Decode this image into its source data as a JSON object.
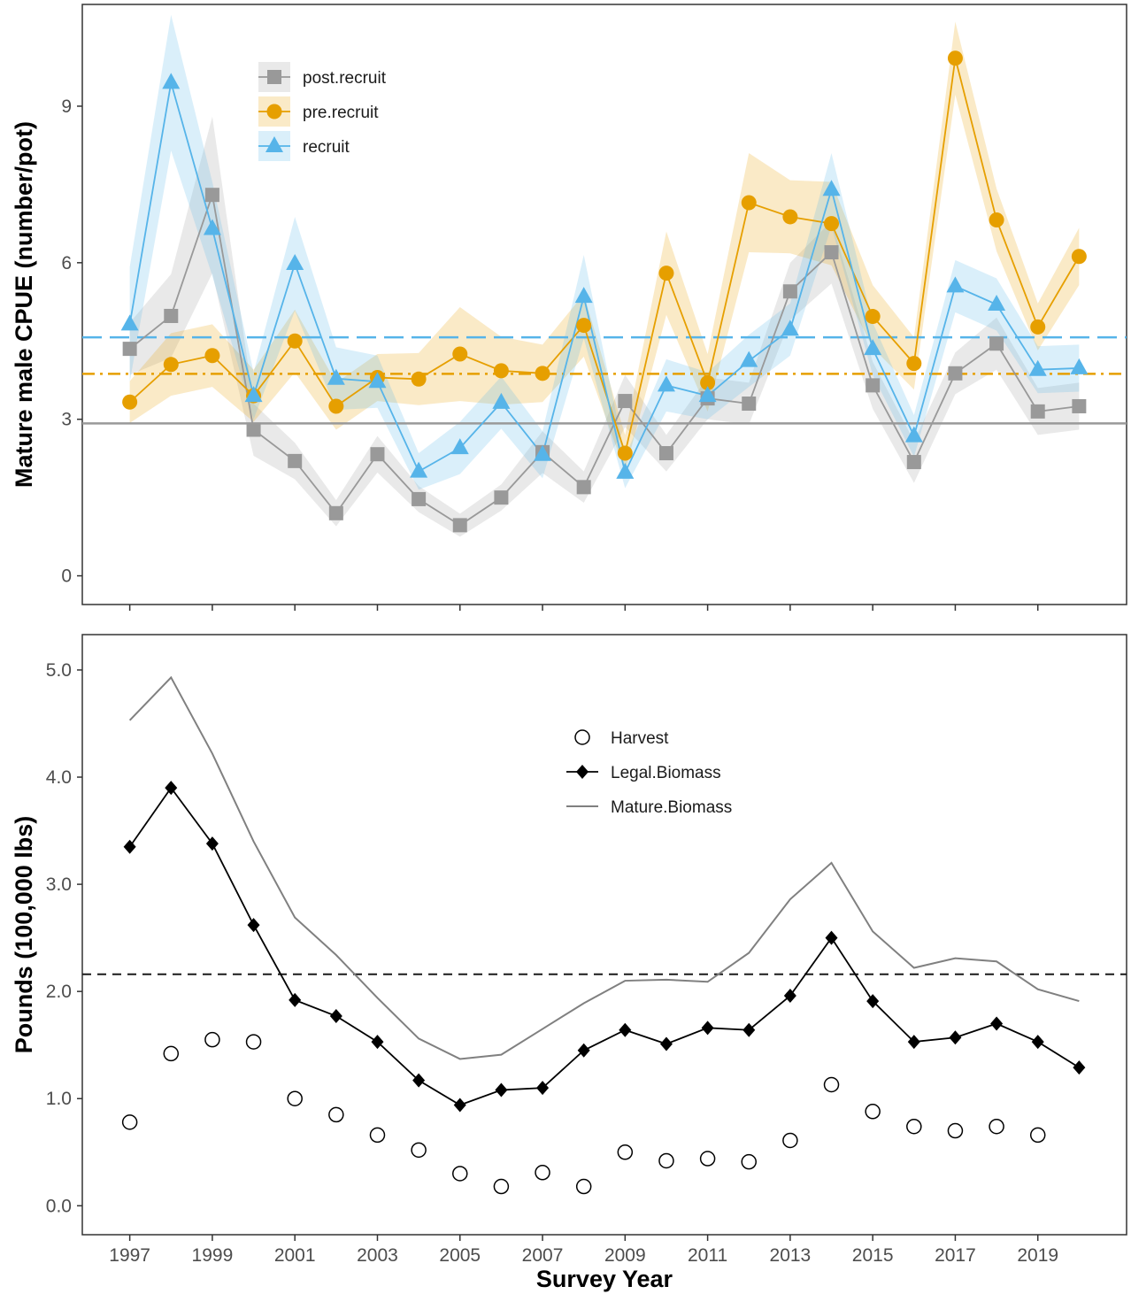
{
  "chart_data": [
    {
      "type": "line",
      "ylabel": "Mature male CPUE (number/pot)",
      "ylim": [
        -0.55,
        10.95
      ],
      "yticks": [
        0,
        3,
        6,
        9
      ],
      "x": [
        1997,
        1998,
        1999,
        2000,
        2001,
        2002,
        2003,
        2004,
        2005,
        2006,
        2007,
        2008,
        2009,
        2010,
        2011,
        2012,
        2013,
        2014,
        2015,
        2016,
        2017,
        2018,
        2019,
        2020
      ],
      "grid": false,
      "legend_position": "top-left",
      "series": [
        {
          "name": "post.recruit",
          "color": "#999999",
          "marker": "square",
          "values": [
            4.35,
            4.98,
            7.3,
            2.8,
            2.2,
            1.2,
            2.33,
            1.47,
            0.97,
            1.5,
            2.37,
            1.7,
            3.35,
            2.35,
            3.4,
            3.3,
            5.45,
            6.2,
            3.65,
            2.18,
            3.88,
            4.45,
            3.15,
            3.25
          ],
          "ci_width": [
            0.5,
            0.8,
            1.5,
            0.5,
            0.35,
            0.25,
            0.35,
            0.25,
            0.22,
            0.25,
            0.4,
            0.3,
            0.5,
            0.35,
            0.4,
            0.4,
            0.55,
            0.6,
            0.45,
            0.4,
            0.4,
            0.5,
            0.45,
            0.45
          ]
        },
        {
          "name": "pre.recruit",
          "color": "#E69F00",
          "marker": "circle",
          "values": [
            3.33,
            4.05,
            4.22,
            3.45,
            4.5,
            3.25,
            3.8,
            3.77,
            4.25,
            3.93,
            3.88,
            4.8,
            2.35,
            5.8,
            3.7,
            7.15,
            6.88,
            6.75,
            4.97,
            4.07,
            9.92,
            6.82,
            4.77,
            6.12
          ],
          "ci_width": [
            0.4,
            0.6,
            0.6,
            0.5,
            0.6,
            0.45,
            0.45,
            0.5,
            0.9,
            0.65,
            0.55,
            0.6,
            0.35,
            0.8,
            0.55,
            0.95,
            0.7,
            0.8,
            0.6,
            0.5,
            0.7,
            0.6,
            0.45,
            0.55
          ]
        },
        {
          "name": "recruit",
          "color": "#56B4E9",
          "marker": "triangle",
          "values": [
            4.82,
            9.45,
            6.65,
            3.45,
            5.98,
            3.78,
            3.72,
            2.0,
            2.45,
            3.32,
            2.32,
            5.35,
            1.98,
            3.65,
            3.45,
            4.12,
            4.72,
            7.4,
            4.35,
            2.68,
            5.55,
            5.2,
            3.95,
            3.98
          ],
          "ci_width": [
            1.1,
            1.3,
            0.9,
            0.45,
            0.9,
            0.6,
            0.5,
            0.35,
            0.5,
            0.5,
            0.45,
            0.8,
            0.3,
            0.5,
            0.45,
            0.5,
            0.5,
            0.7,
            0.5,
            0.4,
            0.5,
            0.5,
            0.45,
            0.45
          ]
        }
      ],
      "reference_lines": [
        {
          "value": 2.92,
          "color": "#999999",
          "style": "solid"
        },
        {
          "value": 3.87,
          "color": "#E69F00",
          "style": "dashdot"
        },
        {
          "value": 4.57,
          "color": "#56B4E9",
          "style": "dashed"
        }
      ]
    },
    {
      "type": "line",
      "ylabel": "Pounds (100,000 lbs)",
      "xlabel": "Survey Year",
      "ylim": [
        -0.27,
        5.33
      ],
      "yticks": [
        "0.0",
        "1.0",
        "2.0",
        "3.0",
        "4.0",
        "5.0"
      ],
      "xticks": [
        "1997",
        "1999",
        "2001",
        "2003",
        "2005",
        "2007",
        "2009",
        "2011",
        "2013",
        "2015",
        "2017",
        "2019"
      ],
      "x": [
        1997,
        1998,
        1999,
        2000,
        2001,
        2002,
        2003,
        2004,
        2005,
        2006,
        2007,
        2008,
        2009,
        2010,
        2011,
        2012,
        2013,
        2014,
        2015,
        2016,
        2017,
        2018,
        2019,
        2020
      ],
      "grid": false,
      "legend_position": "top-center",
      "series": [
        {
          "name": "Harvest",
          "marker": "open-circle",
          "color": "#000000",
          "values": [
            0.78,
            1.42,
            1.55,
            1.53,
            1.0,
            0.85,
            0.66,
            0.52,
            0.3,
            0.18,
            0.31,
            0.18,
            0.5,
            0.42,
            0.44,
            0.41,
            0.61,
            1.13,
            0.88,
            0.74,
            0.7,
            0.74,
            0.66,
            null
          ]
        },
        {
          "name": "Legal.Biomass",
          "marker": "diamond",
          "color": "#000000",
          "values": [
            3.35,
            3.9,
            3.38,
            2.62,
            1.92,
            1.77,
            1.53,
            1.17,
            0.94,
            1.08,
            1.1,
            1.45,
            1.64,
            1.51,
            1.66,
            1.64,
            1.96,
            2.5,
            1.91,
            1.53,
            1.57,
            1.7,
            1.53,
            1.29
          ]
        },
        {
          "name": "Mature.Biomass",
          "marker": "none",
          "color": "#808080",
          "values": [
            4.53,
            4.93,
            4.22,
            3.4,
            2.69,
            2.34,
            1.94,
            1.56,
            1.37,
            1.41,
            1.65,
            1.89,
            2.1,
            2.11,
            2.09,
            2.36,
            2.86,
            3.2,
            2.56,
            2.22,
            2.31,
            2.28,
            2.02,
            1.91
          ]
        }
      ],
      "reference_lines": [
        {
          "value": 2.16,
          "color": "#1a1a1a",
          "style": "dashed"
        }
      ]
    }
  ]
}
